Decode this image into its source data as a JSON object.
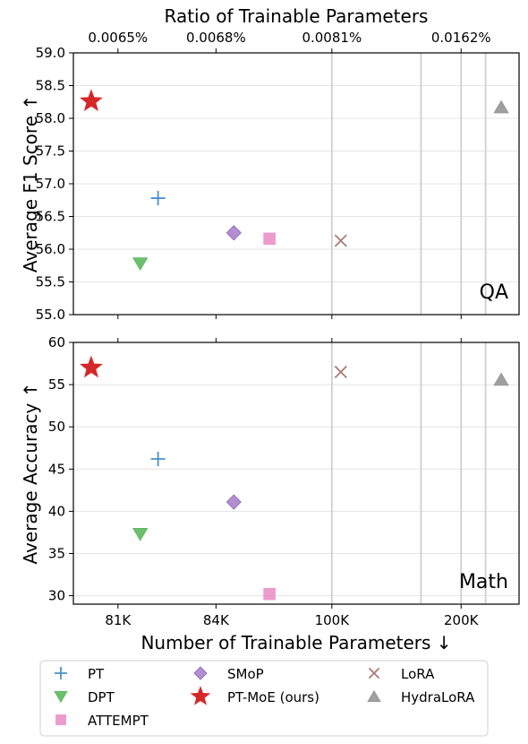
{
  "chart_data": [
    {
      "type": "scatter",
      "panel_label": "QA",
      "ylabel": "Average F1 Score ↑",
      "ylim": [
        55.0,
        59.0
      ],
      "yticks": [
        "55.0",
        "55.5",
        "56.0",
        "56.5",
        "57.0",
        "57.5",
        "58.0",
        "58.5",
        "59.0"
      ],
      "grid": "horizontal",
      "points": [
        {
          "method": "PT",
          "x": 0.19,
          "y": 56.78
        },
        {
          "method": "DPT",
          "x": 0.15,
          "y": 55.78
        },
        {
          "method": "ATTEMPT",
          "x": 0.44,
          "y": 56.16
        },
        {
          "method": "SMoP",
          "x": 0.36,
          "y": 56.25
        },
        {
          "method": "PT-MoE (ours)",
          "x": 0.04,
          "y": 58.26
        },
        {
          "method": "LoRA",
          "x": 0.6,
          "y": 56.13
        },
        {
          "method": "HydraLoRA",
          "x": 0.96,
          "y": 58.17
        }
      ]
    },
    {
      "type": "scatter",
      "panel_label": "Math",
      "ylabel": "Average Accuracy ↑",
      "xlabel": "Number of Trainable Parameters ↓",
      "ylim": [
        29,
        60
      ],
      "yticks": [
        "30",
        "35",
        "40",
        "45",
        "50",
        "55",
        "60"
      ],
      "grid": "horizontal",
      "points": [
        {
          "method": "PT",
          "x": 0.19,
          "y": 46.2
        },
        {
          "method": "DPT",
          "x": 0.15,
          "y": 37.3
        },
        {
          "method": "ATTEMPT",
          "x": 0.44,
          "y": 30.2
        },
        {
          "method": "SMoP",
          "x": 0.36,
          "y": 41.1
        },
        {
          "method": "PT-MoE (ours)",
          "x": 0.04,
          "y": 57.0
        },
        {
          "method": "LoRA",
          "x": 0.6,
          "y": 56.5
        },
        {
          "method": "HydraLoRA",
          "x": 0.96,
          "y": 55.6
        }
      ]
    }
  ],
  "top_axis": {
    "label": "Ratio of Trainable Parameters",
    "ticks": [
      {
        "label": "0.0065%",
        "pos": 0.1
      },
      {
        "label": "0.0068%",
        "pos": 0.32
      },
      {
        "label": "0.0081%",
        "pos": 0.58
      },
      {
        "label": "0.0162%",
        "pos": 0.87
      }
    ]
  },
  "bottom_axis": {
    "ticks": [
      {
        "label": "81K",
        "pos": 0.1
      },
      {
        "label": "84K",
        "pos": 0.32
      },
      {
        "label": "100K",
        "pos": 0.58
      },
      {
        "label": "200K",
        "pos": 0.87
      }
    ]
  },
  "vlines": [
    0.58,
    0.78,
    0.87,
    0.925
  ],
  "series_style": {
    "PT": {
      "marker": "plus",
      "color": "#4a90c8"
    },
    "DPT": {
      "marker": "triangle-down",
      "color": "#5cb85c"
    },
    "ATTEMPT": {
      "marker": "square",
      "color": "#e78ac3"
    },
    "SMoP": {
      "marker": "diamond",
      "color": "#a983cc"
    },
    "PT-MoE (ours)": {
      "marker": "star",
      "color": "#d62728"
    },
    "LoRA": {
      "marker": "x",
      "color": "#a87d72"
    },
    "HydraLoRA": {
      "marker": "triangle-up",
      "color": "#959595"
    }
  },
  "legend": {
    "placement": "bottom",
    "entries": [
      "PT",
      "DPT",
      "ATTEMPT",
      "SMoP",
      "PT-MoE (ours)",
      "LoRA",
      "HydraLoRA"
    ]
  }
}
